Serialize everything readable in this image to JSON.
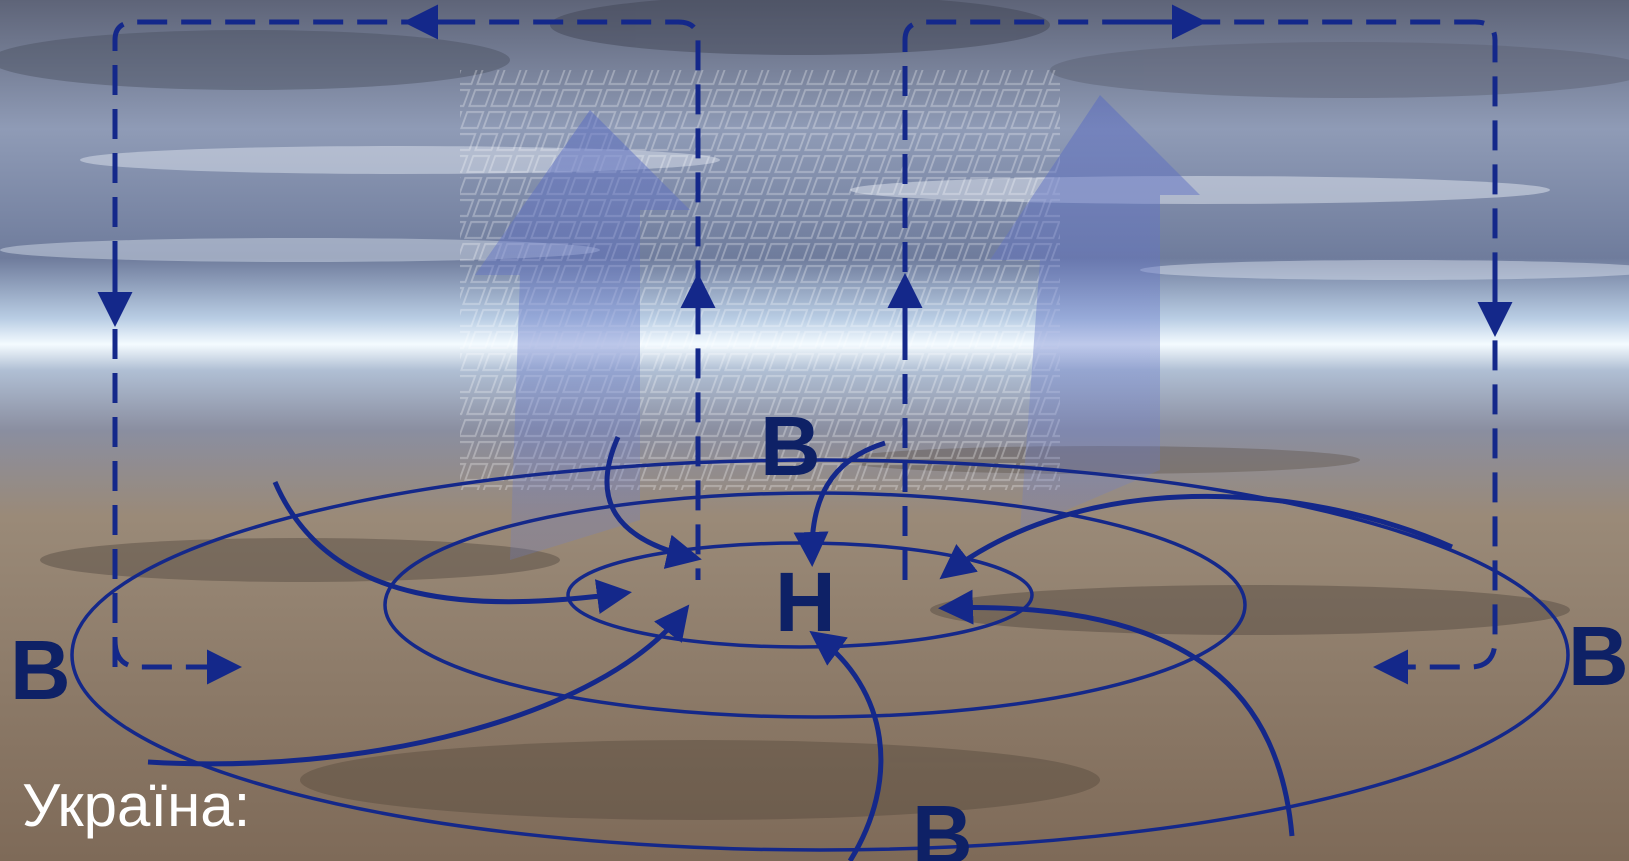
{
  "labels": {
    "low_center": "Н",
    "high_top": "В",
    "high_left": "В",
    "high_right": "В",
    "high_bottom": "В"
  },
  "caption": "Україна:",
  "colors": {
    "arrow": "#14288a",
    "label": "#0e2166",
    "caption": "#ffffff",
    "ground": "#9a8468",
    "sky": "#7c8aa6",
    "horizon": "#e8f4fb"
  }
}
